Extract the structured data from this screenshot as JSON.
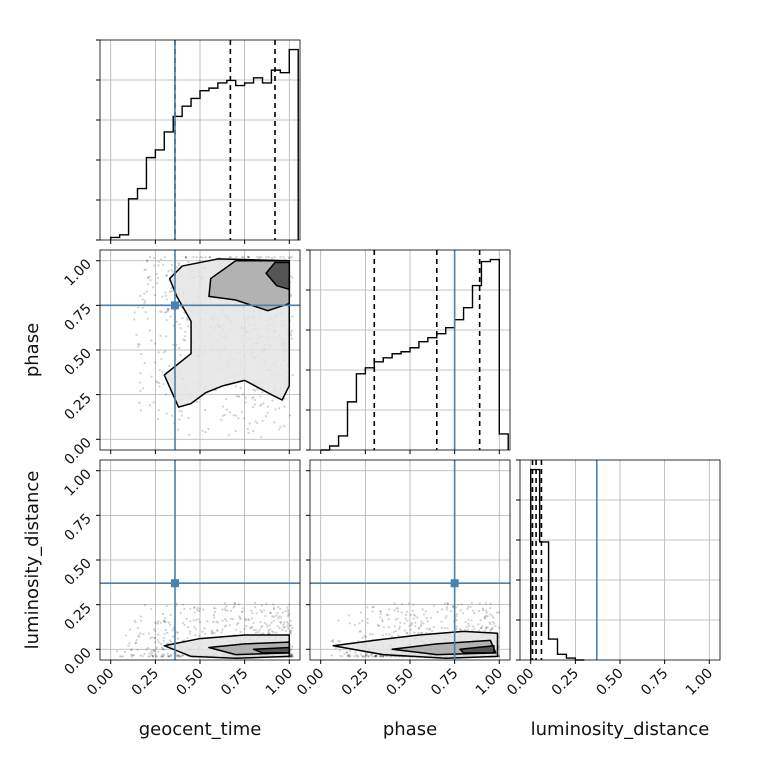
{
  "chart_data": {
    "type": "corner",
    "parameters": [
      "geocent_time",
      "phase",
      "luminosity_distance"
    ],
    "axis_labels": {
      "x": [
        "geocent_time",
        "phase",
        "luminosity_distance"
      ],
      "y": [
        "phase",
        "luminosity_distance"
      ]
    },
    "tick_labels": [
      "0.00",
      "0.25",
      "0.50",
      "0.75",
      "1.00"
    ],
    "tick_values": [
      0.0,
      0.25,
      0.5,
      0.75,
      1.0
    ],
    "ranges": {
      "geocent_time": [
        -0.06,
        1.06
      ],
      "phase": [
        -0.06,
        1.06
      ],
      "luminosity_distance": [
        -0.06,
        1.06
      ]
    },
    "truths": {
      "geocent_time": 0.36,
      "phase": 0.75,
      "luminosity_distance": 0.37
    },
    "truth_color": "#4682b4",
    "line_color": "#000000",
    "grid": true,
    "histograms": {
      "geocent_time": {
        "bin_edges": [
          0.0,
          0.05,
          0.1,
          0.15,
          0.2,
          0.25,
          0.3,
          0.35,
          0.4,
          0.45,
          0.5,
          0.55,
          0.6,
          0.65,
          0.7,
          0.75,
          0.8,
          0.85,
          0.9,
          0.95,
          1.0
        ],
        "counts": [
          1,
          2,
          16,
          20,
          32,
          35,
          42,
          48,
          52,
          55,
          58,
          59,
          61,
          62,
          60,
          61,
          63,
          61,
          66,
          65,
          74
        ],
        "quantile_lines": [
          0.36,
          0.67,
          0.92
        ]
      },
      "phase": {
        "bin_edges": [
          0.0,
          0.05,
          0.1,
          0.15,
          0.2,
          0.25,
          0.3,
          0.35,
          0.4,
          0.45,
          0.5,
          0.55,
          0.6,
          0.65,
          0.7,
          0.75,
          0.8,
          0.85,
          0.9,
          0.95,
          1.0
        ],
        "counts": [
          0,
          2,
          7,
          24,
          38,
          41,
          44,
          46,
          48,
          49,
          51,
          54,
          56,
          58,
          61,
          65,
          71,
          82,
          94,
          95,
          8
        ],
        "quantile_lines": [
          0.3,
          0.65,
          0.89
        ]
      },
      "luminosity_distance": {
        "bin_edges": [
          0.0,
          0.05,
          0.1,
          0.15,
          0.2,
          0.25,
          0.3
        ],
        "counts": [
          100,
          62,
          11,
          3,
          1,
          0
        ],
        "quantile_lines": [
          0.01,
          0.03,
          0.06
        ]
      }
    },
    "contours_2d": {
      "phase_vs_geocent_time": {
        "outer": [
          [
            0.37,
            0.8
          ],
          [
            0.45,
            0.66
          ],
          [
            0.45,
            0.48
          ],
          [
            0.3,
            0.36
          ],
          [
            0.38,
            0.18
          ],
          [
            0.45,
            0.2
          ],
          [
            0.53,
            0.26
          ],
          [
            0.63,
            0.3
          ],
          [
            0.75,
            0.33
          ],
          [
            0.9,
            0.25
          ],
          [
            0.96,
            0.22
          ],
          [
            1.0,
            0.3
          ],
          [
            1.0,
            1.0
          ],
          [
            0.6,
            1.01
          ],
          [
            0.4,
            0.97
          ],
          [
            0.33,
            0.9
          ]
        ],
        "inner": [
          [
            0.55,
            0.8
          ],
          [
            0.56,
            0.9
          ],
          [
            0.7,
            1.0
          ],
          [
            1.0,
            1.0
          ],
          [
            1.0,
            0.76
          ],
          [
            0.88,
            0.72
          ],
          [
            0.7,
            0.78
          ]
        ],
        "core": [
          [
            0.87,
            0.93
          ],
          [
            0.92,
            0.99
          ],
          [
            1.0,
            0.99
          ],
          [
            1.0,
            0.84
          ],
          [
            0.93,
            0.86
          ]
        ]
      },
      "luminosity_distance_vs_geocent_time": {
        "outer": [
          [
            0.3,
            0.02
          ],
          [
            0.5,
            0.06
          ],
          [
            0.75,
            0.08
          ],
          [
            1.0,
            0.08
          ],
          [
            1.0,
            -0.04
          ],
          [
            0.7,
            -0.05
          ],
          [
            0.45,
            -0.04
          ]
        ],
        "inner": [
          [
            0.55,
            0.01
          ],
          [
            0.75,
            0.03
          ],
          [
            1.0,
            0.04
          ],
          [
            1.0,
            -0.02
          ],
          [
            0.7,
            -0.03
          ]
        ],
        "core": [
          [
            0.8,
            0.0
          ],
          [
            1.0,
            0.01
          ],
          [
            1.0,
            -0.02
          ],
          [
            0.85,
            -0.02
          ]
        ]
      },
      "luminosity_distance_vs_phase": {
        "outer": [
          [
            0.07,
            0.02
          ],
          [
            0.3,
            0.05
          ],
          [
            0.55,
            0.08
          ],
          [
            0.8,
            0.1
          ],
          [
            0.99,
            0.09
          ],
          [
            0.99,
            -0.04
          ],
          [
            0.7,
            -0.05
          ],
          [
            0.35,
            -0.03
          ]
        ],
        "inner": [
          [
            0.4,
            0.0
          ],
          [
            0.65,
            0.03
          ],
          [
            0.95,
            0.05
          ],
          [
            0.98,
            -0.02
          ],
          [
            0.65,
            -0.03
          ]
        ],
        "core": [
          [
            0.78,
            0.0
          ],
          [
            0.97,
            0.02
          ],
          [
            0.97,
            -0.02
          ],
          [
            0.8,
            -0.02
          ]
        ]
      }
    }
  }
}
